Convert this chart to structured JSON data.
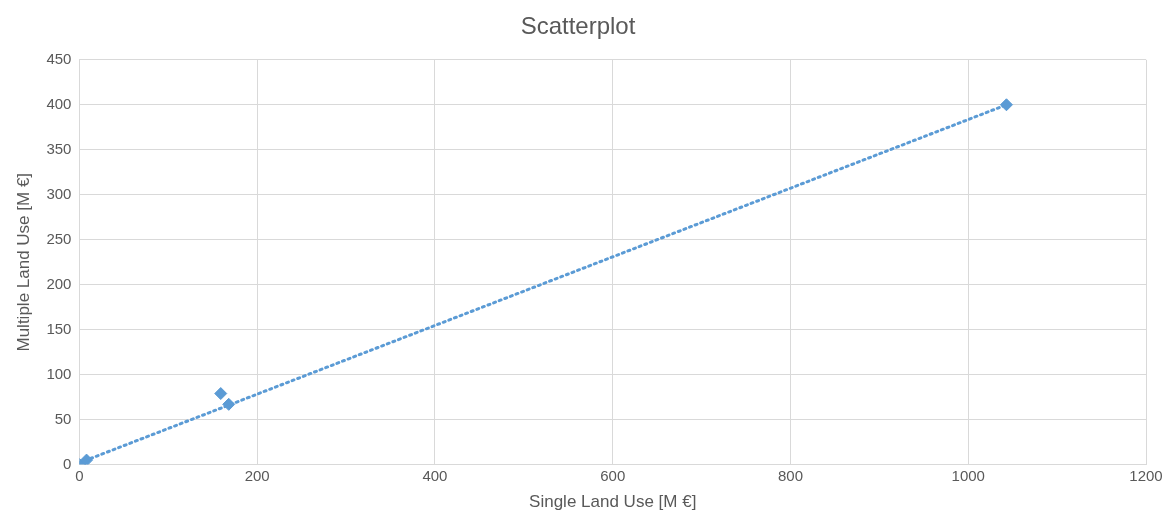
{
  "chart_data": {
    "type": "scatter",
    "title": "Scatterplot",
    "xlabel": "Single Land Use [M €]",
    "ylabel": "Multiple Land Use [M €]",
    "xlim": [
      0,
      1200
    ],
    "xticks": [
      0,
      200,
      400,
      600,
      800,
      1000,
      1200
    ],
    "ylim": [
      0,
      450
    ],
    "yticks": [
      0,
      50,
      100,
      150,
      200,
      250,
      300,
      350,
      400,
      450
    ],
    "grid": true,
    "legend": false,
    "series": [
      {
        "color": "#5b9bd5",
        "marker": "diamond",
        "x": [
          0,
          8,
          159,
          168,
          1043
        ],
        "values": [
          0,
          5,
          79,
          67,
          400
        ]
      },
      {
        "type": "line",
        "color": "#5b9bd5",
        "marker": "none",
        "line_style": "dotted",
        "x": [
          0,
          1043
        ],
        "values": [
          2,
          400
        ]
      }
    ]
  }
}
